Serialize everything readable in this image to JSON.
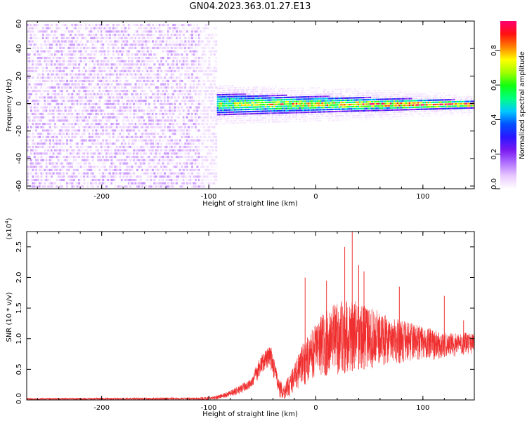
{
  "title": "GN04.2023.363.01.27.E13",
  "chart_data": [
    {
      "type": "heatmap",
      "name": "spectrogram",
      "xlabel": "Height of straight line (km)",
      "ylabel": "Frequency (Hz)",
      "xlim": [
        -270,
        148
      ],
      "ylim": [
        -62,
        60
      ],
      "xticks": [
        -200,
        -100,
        0,
        100
      ],
      "yticks": [
        -60,
        -40,
        -20,
        0,
        20,
        40,
        60
      ],
      "grid": false,
      "colorbar": {
        "label": "Normalized spectral amplitude",
        "range": [
          0,
          0.97
        ],
        "ticks": [
          "0.0",
          "0.2",
          "0.4",
          "0.6",
          "0.8"
        ],
        "tick_values": [
          0.0,
          0.2,
          0.4,
          0.6,
          0.8
        ],
        "colormap": [
          "#ffffff",
          "#e8c8ff",
          "#b070ff",
          "#7a1af0",
          "#2a16ff",
          "#0050ff",
          "#00c8ff",
          "#00ff80",
          "#10ff10",
          "#a0ff00",
          "#ffff00",
          "#ff8000",
          "#ff1010",
          "#ff0070"
        ]
      },
      "regions": [
        {
          "x": [
            -270,
            -95
          ],
          "freq": [
            -62,
            60
          ],
          "amplitude_range": [
            0.0,
            0.12
          ],
          "description_value": "broadband noise"
        },
        {
          "x": [
            -95,
            148
          ],
          "center_freq": 0,
          "half_width_hz": [
            8,
            3
          ],
          "amplitude_range": [
            0.25,
            0.97
          ]
        }
      ]
    },
    {
      "type": "line",
      "name": "snr",
      "xlabel": "Height of straight line (km)",
      "ylabel": "SNR (10 * v/v)",
      "yscale_label": "(x10",
      "yscale_exp": "4",
      "yscale_suffix": ")",
      "xlim": [
        -270,
        148
      ],
      "ylim": [
        0,
        2.75
      ],
      "xticks": [
        -200,
        -100,
        0,
        100
      ],
      "yticks": [
        "0.0",
        "0.5",
        "1.0",
        "1.5",
        "2.0",
        "2.5"
      ],
      "ytick_values": [
        0.0,
        0.5,
        1.0,
        1.5,
        2.0,
        2.5
      ],
      "grid": false,
      "series_color": "#f03030",
      "envelope": {
        "x": [
          -270,
          -110,
          -95,
          -80,
          -70,
          -60,
          -55,
          -50,
          -45,
          -40,
          -35,
          -30,
          -25,
          -20,
          -15,
          -10,
          -5,
          0,
          10,
          20,
          30,
          40,
          50,
          60,
          70,
          80,
          90,
          100,
          110,
          120,
          130,
          140,
          148
        ],
        "lower": [
          0.0,
          0.0,
          0.0,
          0.05,
          0.1,
          0.2,
          0.3,
          0.45,
          0.5,
          0.4,
          0.05,
          0.0,
          0.05,
          0.15,
          0.2,
          0.25,
          0.3,
          0.35,
          0.4,
          0.4,
          0.45,
          0.5,
          0.5,
          0.55,
          0.6,
          0.6,
          0.65,
          0.65,
          0.65,
          0.7,
          0.7,
          0.75,
          0.75
        ],
        "upper": [
          0.03,
          0.04,
          0.06,
          0.15,
          0.25,
          0.35,
          0.6,
          0.75,
          0.85,
          0.9,
          0.35,
          0.25,
          0.4,
          0.6,
          0.8,
          1.0,
          1.1,
          1.3,
          1.5,
          1.6,
          1.65,
          1.6,
          1.5,
          1.45,
          1.35,
          1.3,
          1.25,
          1.2,
          1.15,
          1.1,
          1.1,
          1.1,
          1.1
        ]
      },
      "spikes": [
        {
          "x": -10,
          "y": 2.0
        },
        {
          "x": 10,
          "y": 1.95
        },
        {
          "x": 27,
          "y": 2.5
        },
        {
          "x": 34,
          "y": 2.75
        },
        {
          "x": 40,
          "y": 2.2
        },
        {
          "x": 45,
          "y": 2.1
        },
        {
          "x": 78,
          "y": 1.85
        },
        {
          "x": 120,
          "y": 1.7
        },
        {
          "x": 138,
          "y": 1.3
        }
      ]
    }
  ]
}
